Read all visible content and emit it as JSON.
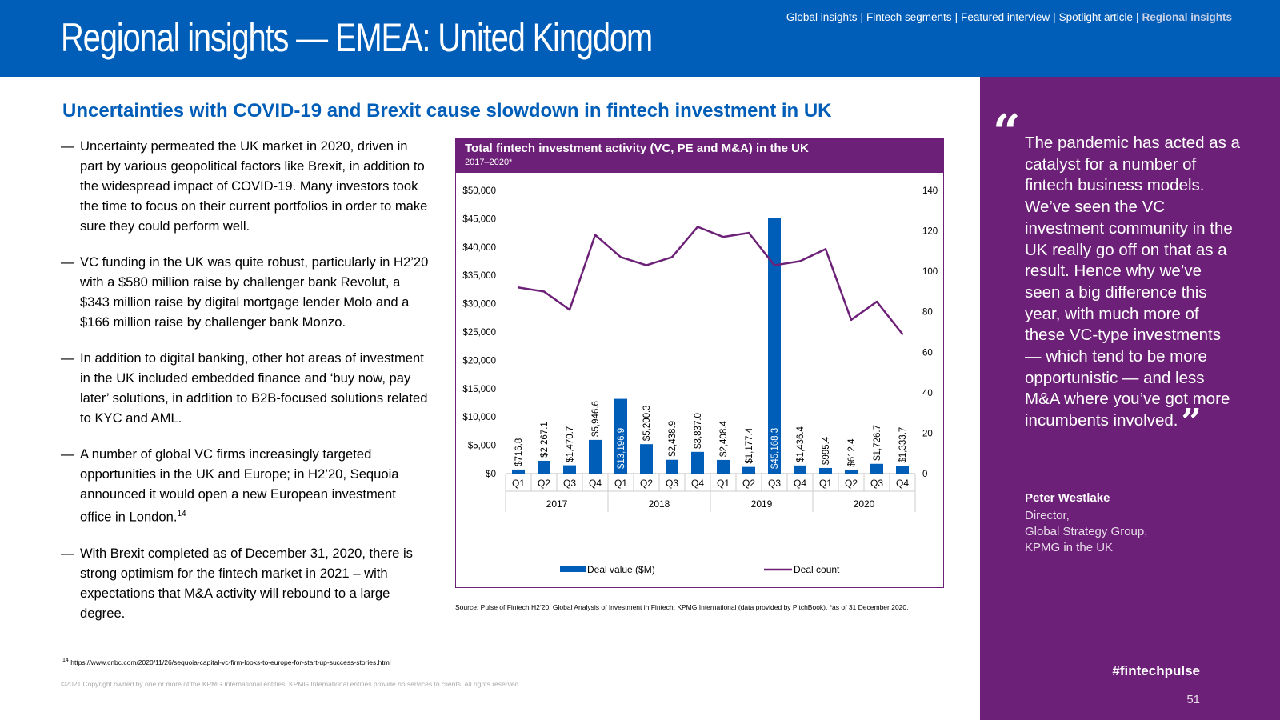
{
  "header": {
    "title": "Regional insights — EMEA: United Kingdom",
    "nav": [
      "Global insights",
      "Fintech segments",
      "Featured interview",
      "Spotlight article",
      "Regional insights"
    ],
    "nav_separator": "|",
    "active_nav": "Regional insights"
  },
  "headline": "Uncertainties with COVID-19 and Brexit cause slowdown in fintech investment in UK",
  "bullet_marker": "—",
  "bullets": [
    "Uncertainty permeated the UK market in 2020, driven in part by various geopolitical factors like Brexit, in addition to the widespread impact of COVID-19. Many investors took the time to focus on their current portfolios in order to make sure they could perform well.",
    "VC funding in the UK was quite robust, particularly in H2’20 with a $580 million raise by challenger bank Revolut, a $343 million raise by digital mortgage lender Molo and a $166 million raise by challenger bank Monzo.",
    "In addition to digital banking, other hot areas of investment in the UK included embedded finance and ‘buy now, pay later’ solutions, in addition to B2B-focused solutions related to KYC and AML.",
    "A number of global VC firms increasingly targeted opportunities in the UK and Europe; in H2’20, Sequoia announced it would open a new European investment office in London.",
    "With Brexit completed as of December 31, 2020, there is strong optimism for the fintech market in 2021 – with expectations that M&A activity will rebound to a large degree."
  ],
  "bullet4_sup": "14",
  "footnote": {
    "num": "14",
    "url": "https://www.cnbc.com/2020/11/26/sequoia-capital-vc-firm-looks-to-europe-for-start-up-success-stories.html"
  },
  "copyright": "©2021 Copyright owned by one or more of the KPMG International entities. KPMG International entities provide no services to clients. All rights reserved.",
  "chart_data": {
    "type": "bar",
    "title": "Total fintech investment activity (VC, PE and M&A) in the UK",
    "subtitle": "2017–2020*",
    "categories": [
      "Q1",
      "Q2",
      "Q3",
      "Q4",
      "Q1",
      "Q2",
      "Q3",
      "Q4",
      "Q1",
      "Q2",
      "Q3",
      "Q4",
      "Q1",
      "Q2",
      "Q3",
      "Q4"
    ],
    "years": [
      "2017",
      "2018",
      "2019",
      "2020"
    ],
    "series": [
      {
        "name": "Deal value ($M)",
        "type": "bar",
        "axis": "left",
        "color": "#005EB8",
        "values": [
          716.8,
          2267.1,
          1470.7,
          5946.6,
          13196.9,
          5200.3,
          2438.9,
          3837.0,
          2408.4,
          1177.4,
          45168.3,
          1436.4,
          995.4,
          612.4,
          1726.7,
          1333.7
        ],
        "labels": [
          "$716.8",
          "$2,267.1",
          "$1,470.7",
          "$5,946.6",
          "$13,196.9",
          "$5,200.3",
          "$2,438.9",
          "$3,837.0",
          "$2,408.4",
          "$1,177.4",
          "$45,168.3",
          "$1,436.4",
          "$995.4",
          "$612.4",
          "$1,726.7",
          "$1,333.7"
        ]
      },
      {
        "name": "Deal count",
        "type": "line",
        "axis": "right",
        "color": "#6D2077",
        "values": [
          92,
          90,
          81,
          118,
          107,
          103,
          107,
          122,
          117,
          119,
          103,
          105,
          111,
          76,
          85,
          69
        ]
      }
    ],
    "y_left": {
      "range": [
        0,
        50000
      ],
      "ticks": [
        "$0",
        "$5,000",
        "$10,000",
        "$15,000",
        "$20,000",
        "$25,000",
        "$30,000",
        "$35,000",
        "$40,000",
        "$45,000",
        "$50,000"
      ]
    },
    "y_right": {
      "range": [
        0,
        140
      ],
      "ticks": [
        "0",
        "20",
        "40",
        "60",
        "80",
        "100",
        "120",
        "140"
      ]
    },
    "legend_position": "bottom",
    "grid": false
  },
  "source": "Source: Pulse of Fintech H2’20, Global Analysis of Investment in Fintech, KPMG International (data provided by PitchBook), *as of 31 December 2020.",
  "quote": {
    "open_mark": "“",
    "text": "The pandemic has acted as a catalyst for a number of fintech business models. We’ve seen the VC investment community in the UK really go off on that as a result. Hence why we’ve seen a big difference this year, with much more of these VC-type investments — which tend to be more opportunistic — and less M&A where you’ve got more incumbents involved.",
    "close_mark": "”",
    "name": "Peter Westlake",
    "title_lines": [
      "Director,",
      "Global Strategy Group,",
      "KPMG in the UK"
    ]
  },
  "hashtag": "#fintechpulse",
  "page_number": "51"
}
